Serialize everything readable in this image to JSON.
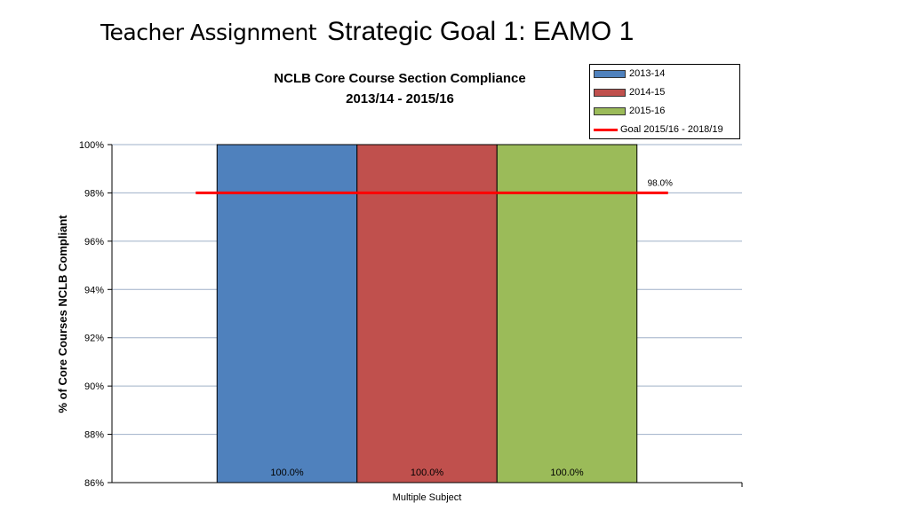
{
  "slide": {
    "title_main": "Teacher Assignment",
    "title_sub": "Strategic Goal 1: EAMO 1"
  },
  "colors": {
    "series_2013_14": "#4f81bd",
    "series_2014_15": "#c0504d",
    "series_2015_16": "#9bbb59",
    "goal_line": "#ff0000",
    "gridline": "#9fb0c8"
  },
  "chart_data": {
    "type": "bar",
    "title": "NCLB Core Course Section Compliance",
    "subtitle": "2013/14 - 2015/16",
    "ylabel": "% of Core Courses NCLB Compliant",
    "xlabel": "",
    "categories": [
      "Multiple Subject"
    ],
    "ylim": [
      86,
      100
    ],
    "yticks": [
      "86%",
      "88%",
      "90%",
      "92%",
      "94%",
      "96%",
      "98%",
      "100%"
    ],
    "grid": true,
    "legend_position": "top-right",
    "series": [
      {
        "name": "2013-14",
        "values": [
          100.0
        ],
        "label": "100.0%"
      },
      {
        "name": "2014-15",
        "values": [
          100.0
        ],
        "label": "100.0%"
      },
      {
        "name": "2015-16",
        "values": [
          100.0
        ],
        "label": "100.0%"
      }
    ],
    "goal": {
      "name": "Goal 2015/16 - 2018/19",
      "value": 98.0,
      "label": "98.0%"
    }
  }
}
